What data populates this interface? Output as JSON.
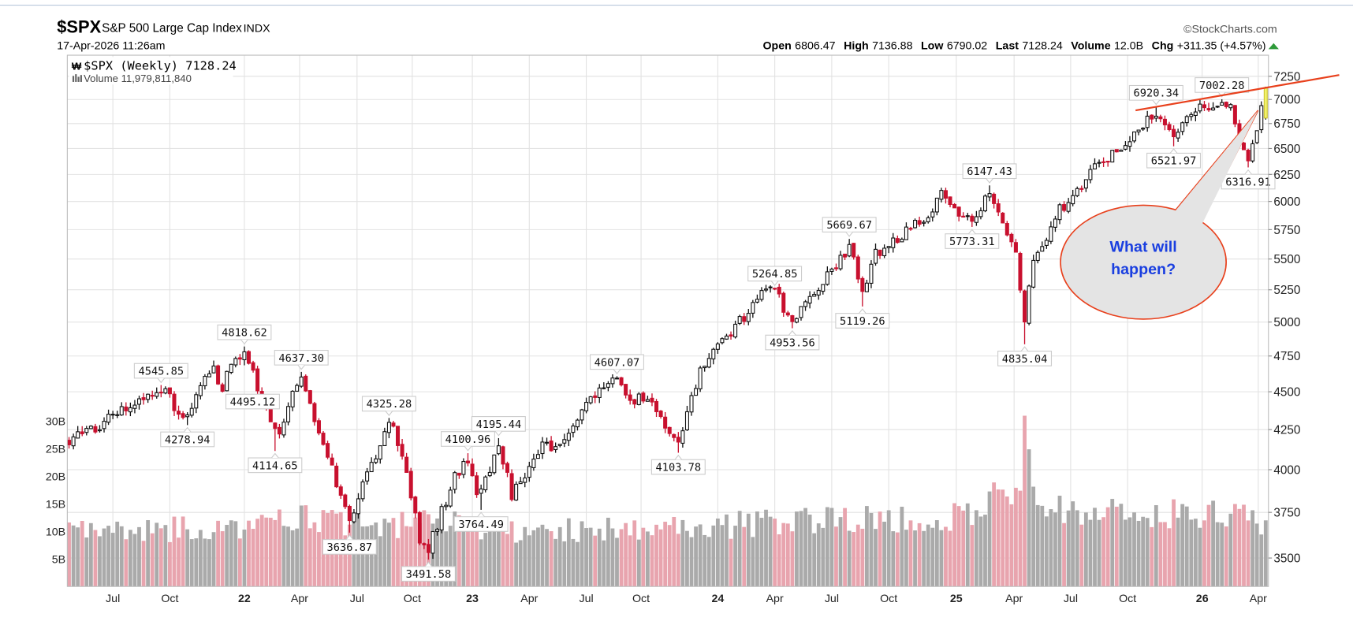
{
  "header": {
    "symbol": "$SPX",
    "name": "S&P 500 Large Cap Index",
    "exchange": "INDX",
    "datetime": "17-Apr-2026 11:26am",
    "copyright": "©StockCharts.com",
    "open_label": "Open",
    "open": "6806.47",
    "high_label": "High",
    "high": "7136.88",
    "low_label": "Low",
    "low": "6790.02",
    "last_label": "Last",
    "last": "7128.24",
    "volume_label": "Volume",
    "volume": "12.0B",
    "chg_label": "Chg",
    "chg": "+311.35 (+4.57%)",
    "chg_icon": "triangle-up-icon"
  },
  "legend": {
    "price": "$SPX (Weekly) 7128.24",
    "volume": "Volume 11,979,811,840"
  },
  "callout": {
    "line1": "What will",
    "line2": "happen?"
  },
  "colors": {
    "up_fill": "#ffffff",
    "down_fill": "#c8102e",
    "up_volume": "#aaaaaa",
    "down_volume": "#e8a4ae",
    "trendline": "#e8401c",
    "callout_text": "#1a3fe0",
    "last_bar": "#f2f26a"
  },
  "chart_data": {
    "type": "candlestick",
    "title": "$SPX (Weekly)",
    "y_scale": "log",
    "ylim": [
      3400,
      7350
    ],
    "y_ticks": [
      7250,
      7000,
      6750,
      6500,
      6250,
      6000,
      5750,
      5500,
      5250,
      5000,
      4750,
      4500,
      4250,
      4000,
      3750,
      3500
    ],
    "volume_ticks": [
      {
        "v": 30,
        "label": "30B"
      },
      {
        "v": 25,
        "label": "25B"
      },
      {
        "v": 20,
        "label": "20B"
      },
      {
        "v": 15,
        "label": "15B"
      },
      {
        "v": 10,
        "label": "10B"
      },
      {
        "v": 5,
        "label": "5B"
      }
    ],
    "x_ticks": [
      {
        "w": 10,
        "label": "Jul"
      },
      {
        "w": 23,
        "label": "Oct"
      },
      {
        "w": 40,
        "label": "22",
        "year": true
      },
      {
        "w": 52.6,
        "label": "Apr"
      },
      {
        "w": 65.7,
        "label": "Jul"
      },
      {
        "w": 78.3,
        "label": "Oct"
      },
      {
        "w": 92,
        "label": "23",
        "year": true
      },
      {
        "w": 105,
        "label": "Apr"
      },
      {
        "w": 118,
        "label": "Jul"
      },
      {
        "w": 130.5,
        "label": "Oct"
      },
      {
        "w": 148,
        "label": "24",
        "year": true
      },
      {
        "w": 161,
        "label": "Apr"
      },
      {
        "w": 174,
        "label": "Jul"
      },
      {
        "w": 187,
        "label": "Oct"
      },
      {
        "w": 202.4,
        "label": "25",
        "year": true
      },
      {
        "w": 215.6,
        "label": "Apr"
      },
      {
        "w": 228.5,
        "label": "Jul"
      },
      {
        "w": 241.5,
        "label": "Oct"
      },
      {
        "w": 258.5,
        "label": "26",
        "year": true
      },
      {
        "w": 271.3,
        "label": "Apr"
      }
    ],
    "weeks": 274,
    "weekly_path": [
      [
        0,
        4190
      ],
      [
        8,
        4300
      ],
      [
        14,
        4400
      ],
      [
        21,
        4530
      ],
      [
        26.5,
        4300
      ],
      [
        31,
        4600
      ],
      [
        33,
        4700
      ],
      [
        34.7,
        4520
      ],
      [
        37,
        4700
      ],
      [
        40,
        4790
      ],
      [
        44,
        4450
      ],
      [
        47.4,
        4200
      ],
      [
        50,
        4400
      ],
      [
        52.6,
        4600
      ],
      [
        56,
        4300
      ],
      [
        59,
        4100
      ],
      [
        61,
        3900
      ],
      [
        64,
        3680
      ],
      [
        67,
        3900
      ],
      [
        70,
        4100
      ],
      [
        73.5,
        4300
      ],
      [
        77,
        4000
      ],
      [
        80,
        3600
      ],
      [
        82,
        3560
      ],
      [
        85,
        3750
      ],
      [
        88,
        3950
      ],
      [
        91.4,
        4060
      ],
      [
        93.5,
        3830
      ],
      [
        96,
        4000
      ],
      [
        98,
        4150
      ],
      [
        101,
        3850
      ],
      [
        104,
        3950
      ],
      [
        108,
        4150
      ],
      [
        112,
        4150
      ],
      [
        116,
        4300
      ],
      [
        120,
        4500
      ],
      [
        125,
        4580
      ],
      [
        128,
        4450
      ],
      [
        132,
        4450
      ],
      [
        135,
        4300
      ],
      [
        139,
        4140
      ],
      [
        142,
        4500
      ],
      [
        146,
        4750
      ],
      [
        150,
        4900
      ],
      [
        154,
        5050
      ],
      [
        158,
        5200
      ],
      [
        161,
        5240
      ],
      [
        165,
        5000
      ],
      [
        168,
        5200
      ],
      [
        172,
        5300
      ],
      [
        175,
        5450
      ],
      [
        178,
        5620
      ],
      [
        181,
        5200
      ],
      [
        184,
        5550
      ],
      [
        188,
        5650
      ],
      [
        192,
        5750
      ],
      [
        196,
        5900
      ],
      [
        199,
        6050
      ],
      [
        202,
        5950
      ],
      [
        206,
        5830
      ],
      [
        210,
        6100
      ],
      [
        213,
        5800
      ],
      [
        216,
        5600
      ],
      [
        218,
        4980
      ],
      [
        220,
        5500
      ],
      [
        223,
        5700
      ],
      [
        226,
        5950
      ],
      [
        229,
        6000
      ],
      [
        232,
        6250
      ],
      [
        236,
        6400
      ],
      [
        240,
        6450
      ],
      [
        244,
        6700
      ],
      [
        248,
        6880
      ],
      [
        252,
        6600
      ],
      [
        255,
        6800
      ],
      [
        258,
        6900
      ],
      [
        261,
        6950
      ],
      [
        263,
        6970
      ],
      [
        265,
        6900
      ],
      [
        267,
        6600
      ],
      [
        269,
        6380
      ],
      [
        271,
        6700
      ],
      [
        273,
        7128.24
      ]
    ],
    "volume_path": [
      [
        0,
        10
      ],
      [
        40,
        11
      ],
      [
        55,
        13
      ],
      [
        70,
        11
      ],
      [
        85,
        12
      ],
      [
        100,
        10
      ],
      [
        140,
        11
      ],
      [
        200,
        13
      ],
      [
        216,
        17
      ],
      [
        218,
        26
      ],
      [
        221,
        15
      ],
      [
        230,
        13
      ],
      [
        260,
        14
      ],
      [
        273,
        12
      ]
    ],
    "annotations": [
      {
        "w": 21,
        "value": "4545.85",
        "type": "high"
      },
      {
        "w": 27,
        "value": "4278.94",
        "type": "low"
      },
      {
        "w": 35,
        "value": "4495.12",
        "type": "low-right"
      },
      {
        "w": 40,
        "value": "4818.62",
        "type": "high"
      },
      {
        "w": 47,
        "value": "4114.65",
        "type": "low"
      },
      {
        "w": 53,
        "value": "4637.30",
        "type": "high"
      },
      {
        "w": 64,
        "value": "3636.87",
        "type": "low"
      },
      {
        "w": 73,
        "value": "4325.28",
        "type": "high"
      },
      {
        "w": 82,
        "value": "3491.58",
        "type": "low"
      },
      {
        "w": 91,
        "value": "4100.96",
        "type": "high"
      },
      {
        "w": 94,
        "value": "3764.49",
        "type": "low"
      },
      {
        "w": 98,
        "value": "4195.44",
        "type": "high"
      },
      {
        "w": 125,
        "value": "4607.07",
        "type": "high"
      },
      {
        "w": 139,
        "value": "4103.78",
        "type": "low"
      },
      {
        "w": 161,
        "value": "5264.85",
        "type": "high"
      },
      {
        "w": 165,
        "value": "4953.56",
        "type": "low"
      },
      {
        "w": 178,
        "value": "5669.67",
        "type": "high"
      },
      {
        "w": 181,
        "value": "5119.26",
        "type": "low"
      },
      {
        "w": 206,
        "value": "5773.31",
        "type": "low"
      },
      {
        "w": 210,
        "value": "6147.43",
        "type": "high"
      },
      {
        "w": 218,
        "value": "4835.04",
        "type": "low"
      },
      {
        "w": 248,
        "value": "6920.34",
        "type": "high"
      },
      {
        "w": 252,
        "value": "6521.97",
        "type": "low"
      },
      {
        "w": 263,
        "value": "7002.28",
        "type": "high"
      },
      {
        "w": 269,
        "value": "6316.91",
        "type": "low"
      }
    ],
    "last": {
      "open": 6806.47,
      "high": 7136.88,
      "low": 6790.02,
      "close": 7128.24,
      "volume_b": 11.98
    }
  }
}
